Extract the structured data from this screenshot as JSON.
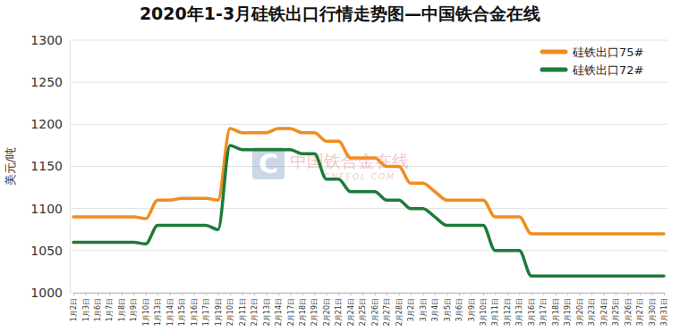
{
  "chart_data": {
    "type": "line",
    "title": "2020年1-3月硅铁出口行情走势图—中国铁合金在线",
    "y_label": "美元/吨",
    "annotations": [
      "中国铁合金在线",
      "CNFEOL.COM"
    ],
    "categories": [
      "1月2日",
      "1月3日",
      "1月6日",
      "1月7日",
      "1月8日",
      "1月9日",
      "1月10日",
      "1月13日",
      "1月14日",
      "1月15日",
      "1月16日",
      "1月17日",
      "1月19日",
      "2月10日",
      "2月11日",
      "2月12日",
      "2月13日",
      "2月14日",
      "2月17日",
      "2月18日",
      "2月19日",
      "2月20日",
      "2月21日",
      "2月24日",
      "2月25日",
      "2月26日",
      "2月27日",
      "2月28日",
      "3月2日",
      "3月3日",
      "3月4日",
      "3月5日",
      "3月6日",
      "3月9日",
      "3月10日",
      "3月11日",
      "3月12日",
      "3月13日",
      "3月16日",
      "3月17日",
      "3月18日",
      "3月19日",
      "3月20日",
      "3月23日",
      "3月24日",
      "3月25日",
      "3月26日",
      "3月27日",
      "3月30日",
      "3月31日"
    ],
    "series": [
      {
        "name": "硅铁出口75#",
        "color": "#f28c1e",
        "values": [
          1090,
          1090,
          1090,
          1090,
          1090,
          1090,
          1088,
          1110,
          1110,
          1112,
          1112,
          1112,
          1110,
          1195,
          1190,
          1190,
          1190,
          1195,
          1195,
          1190,
          1190,
          1180,
          1180,
          1160,
          1160,
          1160,
          1150,
          1150,
          1130,
          1130,
          1120,
          1110,
          1110,
          1110,
          1110,
          1090,
          1090,
          1090,
          1070,
          1070,
          1070,
          1070,
          1070,
          1070,
          1070,
          1070,
          1070,
          1070,
          1070,
          1070
        ]
      },
      {
        "name": "硅铁出口72#",
        "color": "#1f7a3a",
        "values": [
          1060,
          1060,
          1060,
          1060,
          1060,
          1060,
          1058,
          1080,
          1080,
          1080,
          1080,
          1080,
          1075,
          1175,
          1170,
          1170,
          1170,
          1170,
          1170,
          1165,
          1165,
          1135,
          1135,
          1120,
          1120,
          1120,
          1110,
          1110,
          1100,
          1100,
          1090,
          1080,
          1080,
          1080,
          1080,
          1050,
          1050,
          1050,
          1020,
          1020,
          1020,
          1020,
          1020,
          1020,
          1020,
          1020,
          1020,
          1020,
          1020,
          1020
        ]
      }
    ],
    "ylim": [
      1000,
      1300
    ],
    "yticks": [
      1000,
      1050,
      1100,
      1150,
      1200,
      1250,
      1300
    ],
    "grid": true,
    "legend": "top-right"
  }
}
